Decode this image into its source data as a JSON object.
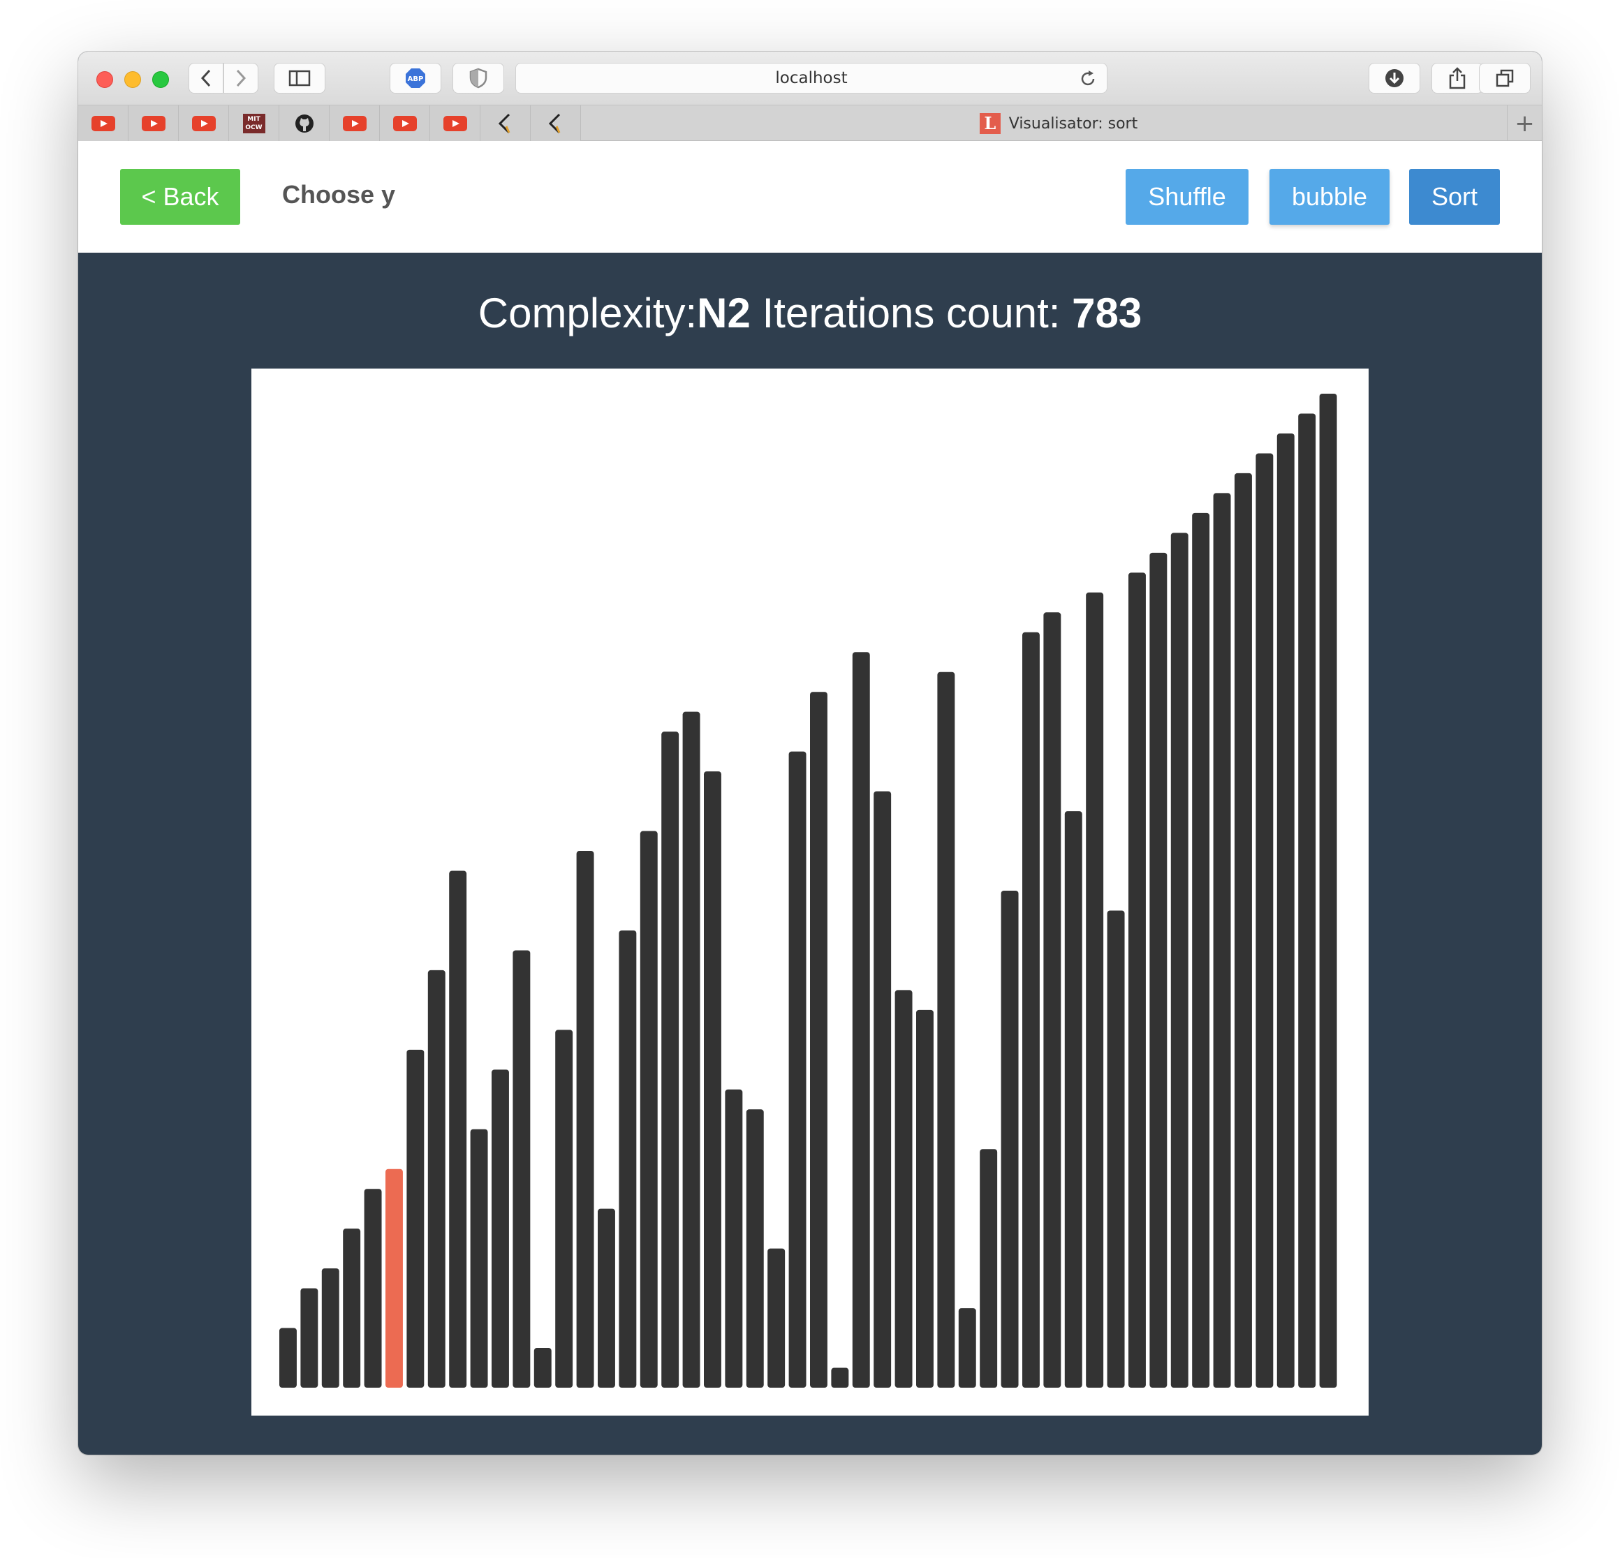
{
  "browser": {
    "url": "localhost",
    "tab_title": "Visualisator: sort",
    "tab_favicon_letter": "L",
    "new_tab_label": "+",
    "bookmarks": [
      {
        "icon": "youtube-icon"
      },
      {
        "icon": "youtube-icon"
      },
      {
        "icon": "youtube-icon"
      },
      {
        "icon": "mit-ocw-icon",
        "text": "MIT OCW"
      },
      {
        "icon": "github-icon"
      },
      {
        "icon": "youtube-icon"
      },
      {
        "icon": "youtube-icon"
      },
      {
        "icon": "youtube-icon"
      },
      {
        "icon": "bracket-icon"
      },
      {
        "icon": "bracket-icon"
      }
    ]
  },
  "header": {
    "back_label": "< Back",
    "choose_label": "Choose y",
    "shuffle_label": "Shuffle",
    "algorithm_label": "bubble",
    "sort_label": "Sort"
  },
  "stats": {
    "complexity_label": "Complexity:",
    "complexity_value": "N2",
    "iterations_label": "Iterations count:",
    "iterations_value": "783"
  },
  "colors": {
    "bar": "#333333",
    "highlight": "#ec6b52",
    "background": "#2f3e4e"
  },
  "chart_data": {
    "type": "bar",
    "values": [
      6,
      10,
      12,
      16,
      20,
      22,
      34,
      42,
      52,
      26,
      32,
      44,
      4,
      36,
      54,
      18,
      46,
      56,
      66,
      68,
      62,
      30,
      28,
      14,
      64,
      70,
      2,
      74,
      60,
      40,
      38,
      72,
      8,
      24,
      50,
      76,
      78,
      58,
      80,
      48,
      82,
      84,
      86,
      88,
      90,
      92,
      94,
      96,
      98,
      100
    ],
    "highlight_index": 5,
    "ylim": [
      0,
      100
    ]
  }
}
